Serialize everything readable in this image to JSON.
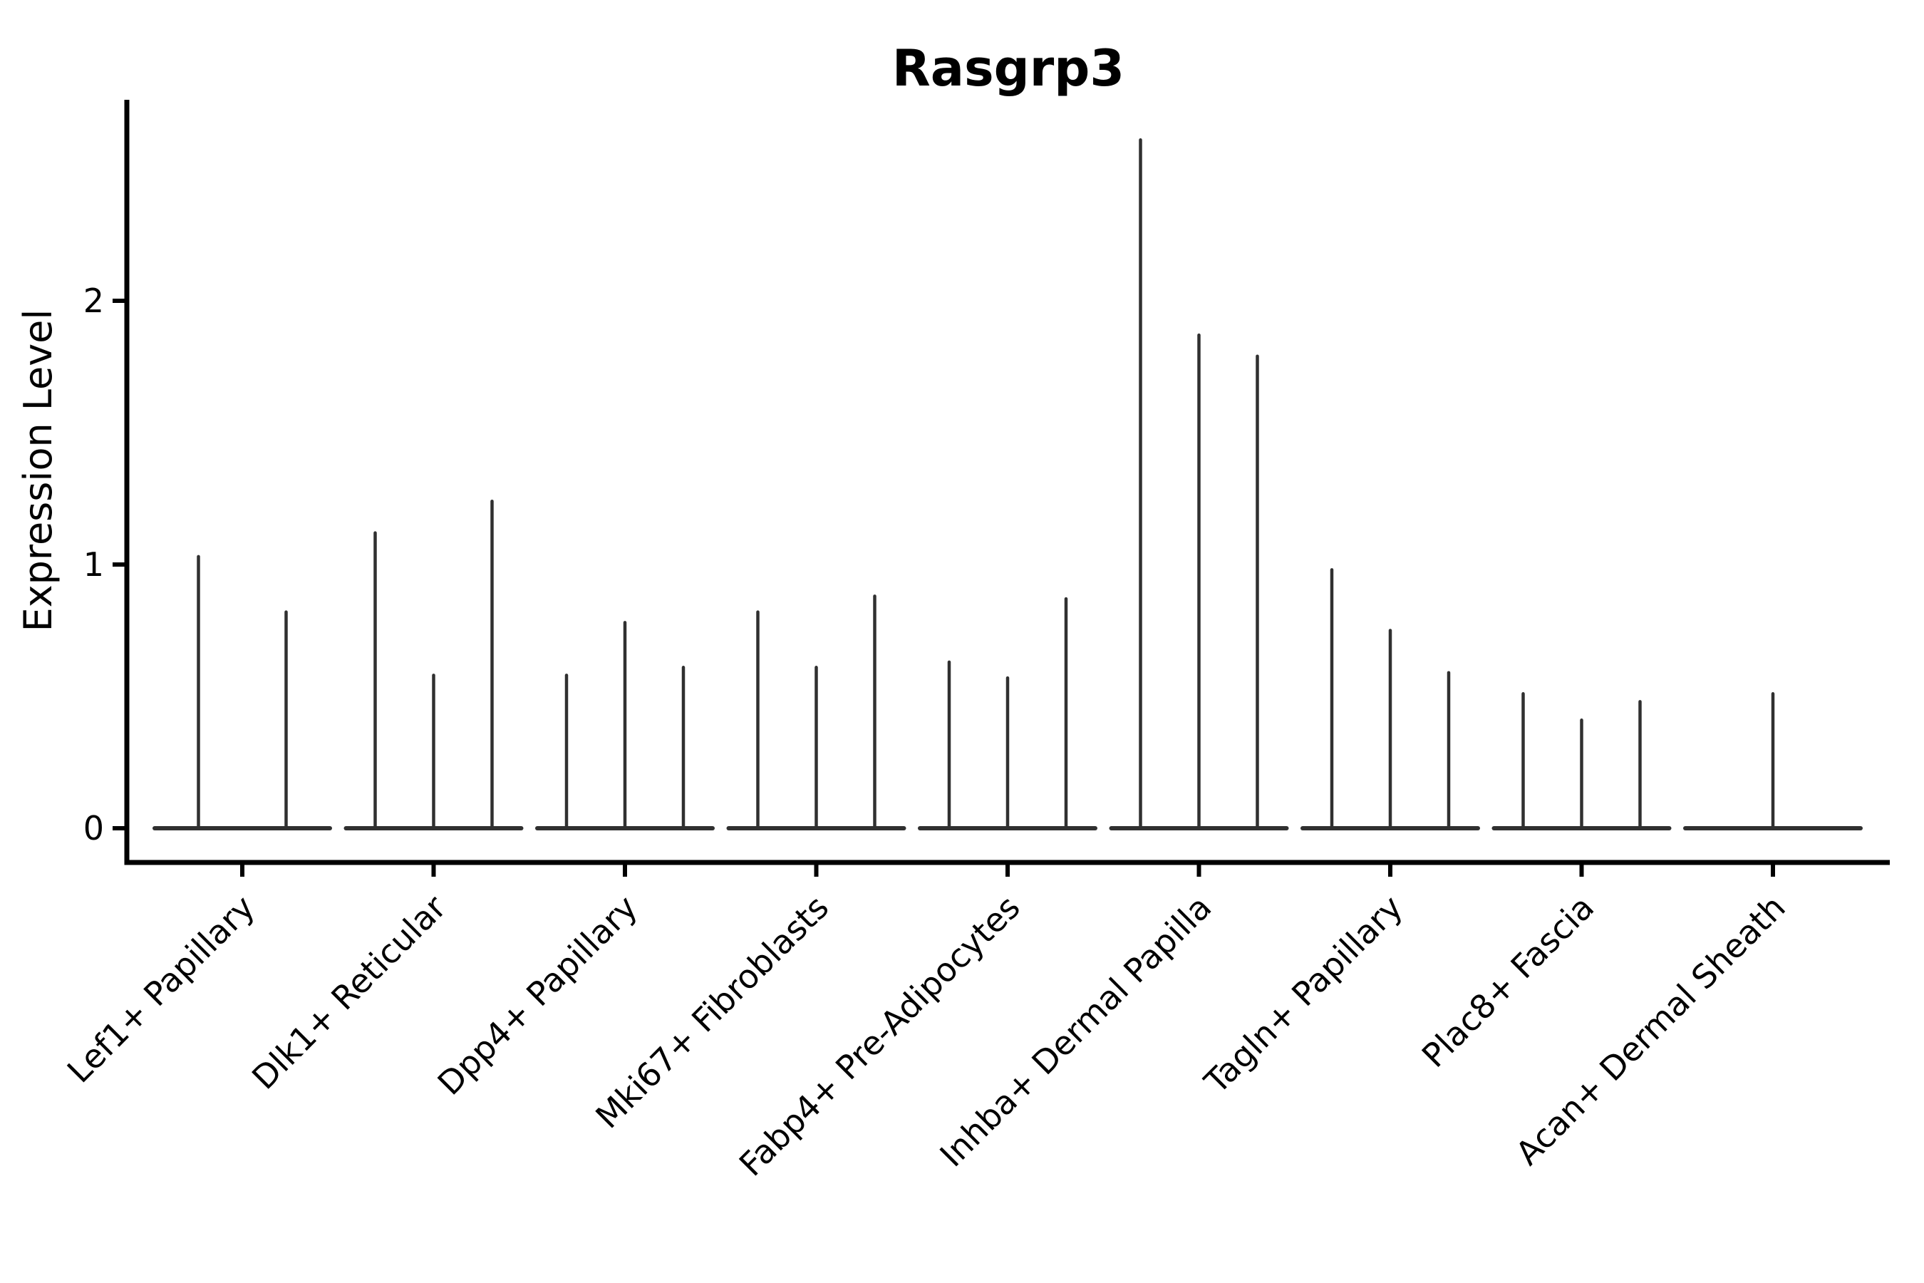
{
  "chart_data": {
    "type": "violin",
    "title": "Rasgrp3",
    "xlabel": "",
    "ylabel": "Expression Level",
    "ylim": [
      0,
      2.76
    ],
    "yticks": [
      0,
      1,
      2
    ],
    "ytick_labels": [
      "0",
      "1",
      "2"
    ],
    "grid": false,
    "legend": "none",
    "line_color": "#303030",
    "axis_color": "#000000",
    "categories": [
      "Lef1+ Papillary",
      "Dlk1+ Reticular",
      "Dpp4+ Papillary",
      "Mki67+ Fibroblasts",
      "Fabp4+ Pre-Adipocytes",
      "Inhba+ Dermal Papilla",
      "Tagln+ Papillary",
      "Plac8+ Fascia",
      "Acan+ Dermal Sheath"
    ],
    "groups": [
      {
        "category": "Lef1+ Papillary",
        "violin_max_values": [
          1.03,
          0.82
        ]
      },
      {
        "category": "Dlk1+ Reticular",
        "violin_max_values": [
          1.12,
          0.58,
          1.24
        ]
      },
      {
        "category": "Dpp4+ Papillary",
        "violin_max_values": [
          0.58,
          0.78,
          0.61
        ]
      },
      {
        "category": "Mki67+ Fibroblasts",
        "violin_max_values": [
          0.82,
          0.61,
          0.88
        ]
      },
      {
        "category": "Fabp4+ Pre-Adipocytes",
        "violin_max_values": [
          0.63,
          0.57,
          0.87
        ]
      },
      {
        "category": "Inhba+ Dermal Papilla",
        "violin_max_values": [
          2.61,
          1.87,
          1.79
        ]
      },
      {
        "category": "Tagln+ Papillary",
        "violin_max_values": [
          0.98,
          0.75,
          0.59
        ]
      },
      {
        "category": "Plac8+ Fascia",
        "violin_max_values": [
          0.51,
          0.41,
          0.48
        ]
      },
      {
        "category": "Acan+ Dermal Sheath",
        "violin_max_values": [
          0.51
        ]
      }
    ]
  }
}
